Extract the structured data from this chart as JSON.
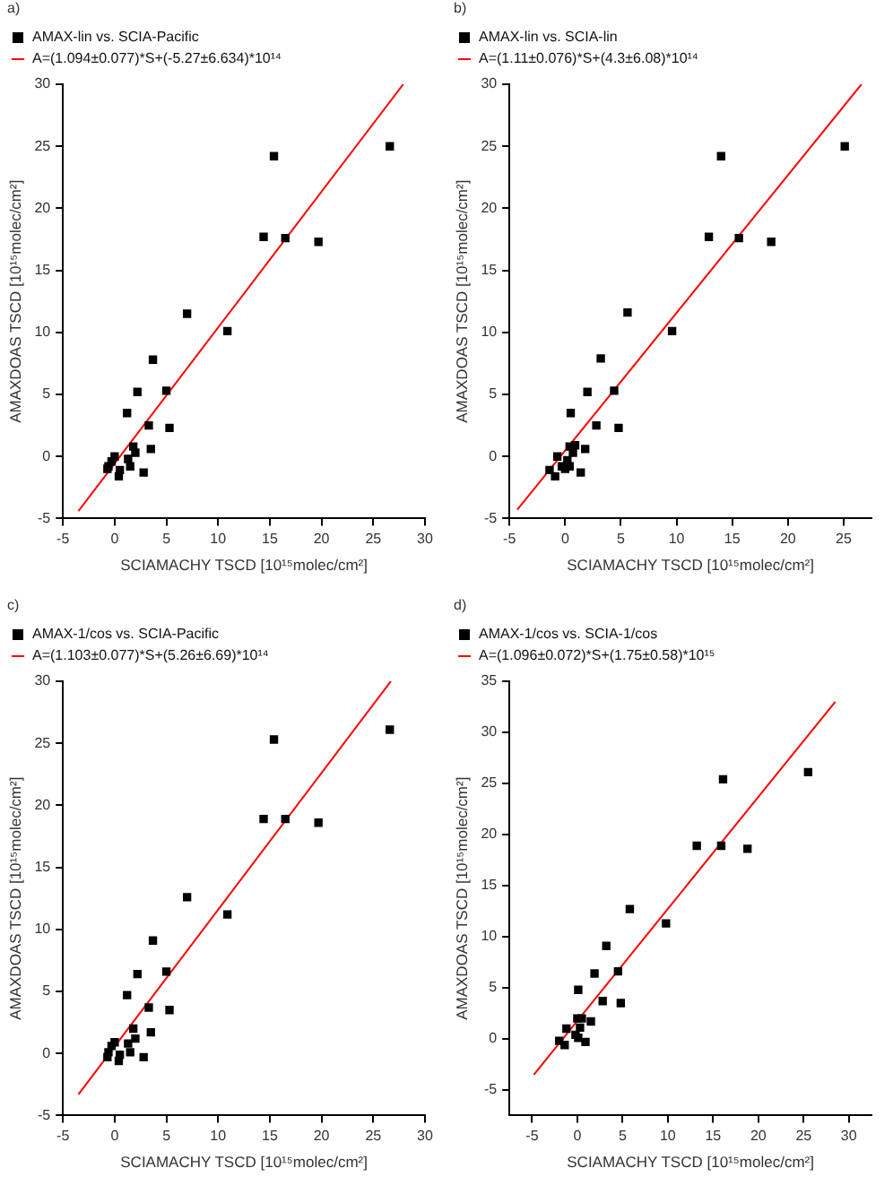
{
  "chart_data": [
    {
      "type": "scatter",
      "annotations": [
        "a)"
      ],
      "xlabel": "SCIAMACHY TSCD [10¹⁵molec/cm²]",
      "ylabel": "AMAXDOAS TSCD [10¹⁵molec/cm²]",
      "xlim": [
        -5,
        30
      ],
      "xticks": [
        -5,
        0,
        5,
        10,
        15,
        20,
        25,
        30
      ],
      "ylim": [
        -5,
        30
      ],
      "yticks": [
        -5,
        0,
        5,
        10,
        15,
        20,
        25,
        30
      ],
      "legend": "top left",
      "marker": "square",
      "series": [
        {
          "name": "AMAX-lin vs. SCIA-Pacific",
          "color": "#000000",
          "x": [
            26.6,
            15.4,
            14.4,
            16.5,
            19.7,
            7.0,
            10.9,
            3.7,
            5.0,
            2.2,
            1.2,
            3.3,
            5.3,
            3.5,
            1.8,
            2.0,
            1.3,
            1.5,
            2.8,
            0.5,
            0.4,
            0,
            -0.3,
            -0.6,
            -0.7
          ],
          "values": [
            25.0,
            24.2,
            17.7,
            17.6,
            17.3,
            11.5,
            10.1,
            7.8,
            5.3,
            5.2,
            3.5,
            2.5,
            2.3,
            0.6,
            0.8,
            0.3,
            -0.2,
            -0.8,
            -1.3,
            -1.1,
            -1.6,
            0.0,
            -0.4,
            -0.8,
            -1.0
          ]
        },
        {
          "type": "line",
          "name": "A=(1.094±0.077)*S+(-5.27±6.634)*10¹⁴",
          "color": "#ff0000",
          "marker": "none",
          "x": [
            -3.5,
            27.9
          ],
          "values": [
            -4.4,
            30
          ]
        }
      ]
    },
    {
      "type": "scatter",
      "annotations": [
        "b)"
      ],
      "xlabel": "SCIAMACHY TSCD [10¹⁵molec/cm²]",
      "ylabel": "AMAXDOAS TSCD [10¹⁵molec/cm²]",
      "xlim": [
        -5,
        27.5
      ],
      "xticks": [
        -5,
        0,
        5,
        10,
        15,
        20,
        25
      ],
      "ylim": [
        -5,
        30
      ],
      "yticks": [
        -5,
        0,
        5,
        10,
        15,
        20,
        25,
        30
      ],
      "legend": "top left",
      "marker": "square",
      "series": [
        {
          "name": "AMAX-lin vs. SCIA-lin",
          "color": "#000000",
          "x": [
            25.1,
            14.0,
            12.9,
            15.6,
            18.5,
            5.6,
            9.6,
            3.2,
            4.4,
            2.0,
            0.5,
            2.8,
            4.8,
            1.8,
            0.4,
            0.9,
            0.7,
            0.2,
            1.4,
            -0.7,
            -0.3,
            0.0,
            -0.9,
            -1.4,
            0.4
          ],
          "values": [
            25.0,
            24.2,
            17.7,
            17.6,
            17.3,
            11.6,
            10.1,
            7.9,
            5.3,
            5.2,
            3.5,
            2.5,
            2.3,
            0.6,
            0.8,
            0.9,
            0.3,
            -0.3,
            -1.3,
            0.0,
            -0.8,
            -1.0,
            -1.6,
            -1.1,
            -0.8
          ]
        },
        {
          "type": "line",
          "name": "A=(1.11±0.076)*S+(4.3±6.08)*10¹⁴",
          "color": "#ff0000",
          "marker": "none",
          "x": [
            -4.3,
            26.6
          ],
          "values": [
            -4.3,
            30
          ]
        }
      ]
    },
    {
      "type": "scatter",
      "annotations": [
        "c)"
      ],
      "xlabel": "SCIAMACHY TSCD [10¹⁵molec/cm²]",
      "ylabel": "AMAXDOAS TSCD [10¹⁵molec/cm²]",
      "xlim": [
        -5,
        30
      ],
      "xticks": [
        -5,
        0,
        5,
        10,
        15,
        20,
        25,
        30
      ],
      "ylim": [
        -5,
        30
      ],
      "yticks": [
        -5,
        0,
        5,
        10,
        15,
        20,
        25,
        30
      ],
      "legend": "top left",
      "marker": "square",
      "series": [
        {
          "name": "AMAX-1/cos vs. SCIA-Pacific",
          "color": "#000000",
          "x": [
            26.6,
            15.4,
            14.4,
            16.5,
            19.7,
            7.0,
            10.9,
            3.7,
            5.0,
            2.2,
            1.2,
            3.3,
            5.3,
            3.5,
            1.8,
            2.0,
            1.3,
            1.5,
            2.8,
            0.5,
            0.4,
            0,
            -0.3,
            -0.6,
            -0.7
          ],
          "values": [
            26.1,
            25.3,
            18.9,
            18.9,
            18.6,
            12.6,
            11.2,
            9.1,
            6.6,
            6.4,
            4.7,
            3.7,
            3.5,
            1.7,
            2.0,
            1.2,
            0.8,
            0.1,
            -0.3,
            -0.1,
            -0.6,
            0.9,
            0.6,
            0.1,
            -0.3
          ]
        },
        {
          "type": "line",
          "name": "A=(1.103±0.077)*S+(5.26±6.69)*10¹⁴",
          "color": "#ff0000",
          "marker": "none",
          "x": [
            -3.5,
            26.7
          ],
          "values": [
            -3.3,
            30
          ]
        }
      ]
    },
    {
      "type": "scatter",
      "annotations": [
        "d)"
      ],
      "xlabel": "SCIAMACHY TSCD [10¹⁵molec/cm²]",
      "ylabel": "AMAXDOAS TSCD [10¹⁵molec/cm²]",
      "xlim": [
        -7.5,
        32.5
      ],
      "xticks": [
        -5,
        0,
        5,
        10,
        15,
        20,
        25,
        30
      ],
      "ylim": [
        -7.5,
        35
      ],
      "yticks": [
        -5,
        0,
        5,
        10,
        15,
        20,
        25,
        30,
        35
      ],
      "legend": "top left",
      "marker": "square",
      "series": [
        {
          "name": "AMAX-1/cos vs. SCIA-1/cos",
          "color": "#000000",
          "x": [
            25.5,
            16.1,
            13.2,
            15.9,
            18.8,
            5.8,
            9.8,
            3.2,
            4.5,
            1.9,
            0.1,
            2.8,
            4.8,
            1.5,
            0.0,
            0.5,
            0.3,
            0.9,
            -1.2,
            0.1,
            -1.4,
            -2.0,
            -0.2
          ],
          "values": [
            26.1,
            25.4,
            18.9,
            18.9,
            18.6,
            12.7,
            11.3,
            9.1,
            6.6,
            6.4,
            4.8,
            3.7,
            3.5,
            1.7,
            2.0,
            2.0,
            1.1,
            -0.3,
            1.0,
            0.1,
            -0.6,
            -0.2,
            0.4
          ]
        },
        {
          "type": "line",
          "name": "A=(1.096±0.072)*S+(1.75±0.58)*10¹⁵",
          "color": "#ff0000",
          "marker": "none",
          "x": [
            -4.8,
            28.5
          ],
          "values": [
            -3.5,
            33
          ]
        }
      ]
    }
  ]
}
